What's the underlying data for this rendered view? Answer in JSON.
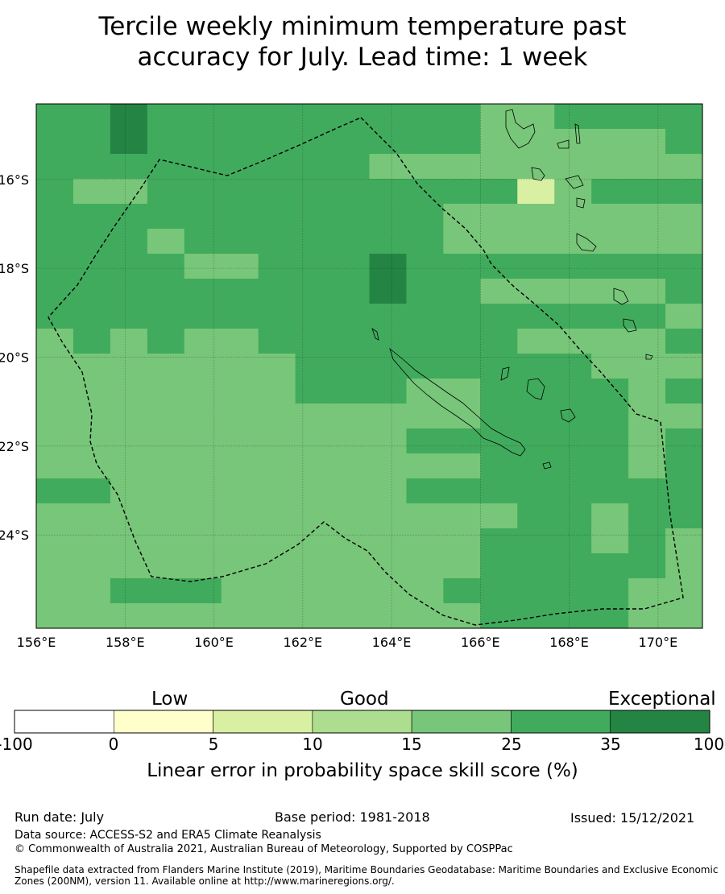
{
  "title_line1": "Tercile weekly minimum temperature past",
  "title_line2": "accuracy for July. Lead time: 1 week",
  "map": {
    "lon_range": [
      156,
      171
    ],
    "lat_range": [
      -14.3,
      -26.1
    ],
    "lon_ticks": [
      "156°E",
      "158°E",
      "160°E",
      "162°E",
      "164°E",
      "166°E",
      "168°E",
      "170°E"
    ],
    "lat_ticks": [
      "16°S",
      "18°S",
      "20°S",
      "22°S",
      "24°S"
    ],
    "grid_lines": true,
    "boundary": "dashed EEZ outline",
    "colors": {
      "skill_15_25": "#78c679",
      "skill_25_35": "#41ab5d",
      "skill_35_100": "#238443",
      "skill_10_15": "#addd8e",
      "skill_5_10": "#d9f0a3"
    }
  },
  "colorbar": {
    "categories": [
      "Low",
      "Good",
      "Exceptional"
    ],
    "ticks": [
      "-100",
      "0",
      "5",
      "10",
      "15",
      "25",
      "35",
      "100"
    ],
    "colors": [
      "#ffffff",
      "#ffffcc",
      "#d9f0a3",
      "#addd8e",
      "#78c679",
      "#41ab5d",
      "#238443"
    ],
    "label": "Linear error in probability space skill score (%)"
  },
  "footer": {
    "run_date": "Run date: July",
    "base_period": "Base period: 1981-2018",
    "issued": "Issued: 15/12/2021",
    "data_source": "Data source: ACCESS-S2 and ERA5 Climate Reanalysis",
    "copyright": "© Commonwealth of Australia 2021, Australian Bureau of Meteorology, Supported by COSPPac",
    "shapefile1": "Shapefile data extracted from Flanders Marine Institute (2019), Maritime Boundaries Geodatabase: Maritime Boundaries and Exclusive Economic",
    "shapefile2": "Zones (200NM), version 11. Available online at http://www.marineregions.org/."
  }
}
